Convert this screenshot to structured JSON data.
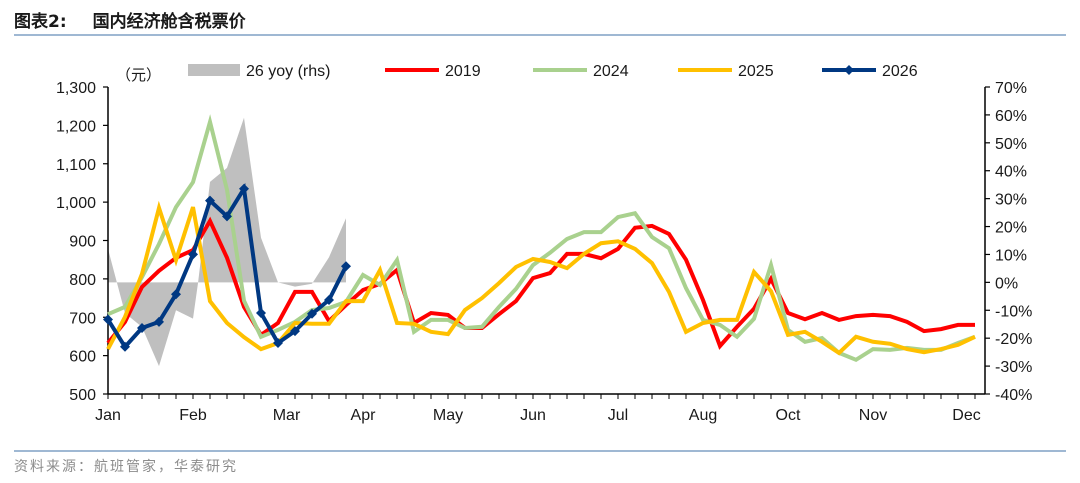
{
  "header": {
    "figure_label": "图表2:",
    "title": "国内经济舱含税票价"
  },
  "footer": {
    "source": "资料来源：航班管家，华泰研究"
  },
  "chart_data": {
    "type": "line",
    "title": "国内经济舱含税票价",
    "ylabel": "（元）",
    "y2label": "26 yoy (rhs)",
    "ylim": [
      500,
      1300
    ],
    "y2lim": [
      -40,
      70
    ],
    "yticks": [
      "500",
      "600",
      "700",
      "800",
      "900",
      "1,000",
      "1,100",
      "1,200",
      "1,300"
    ],
    "y2ticks": [
      "-40%",
      "-30%",
      "-20%",
      "-10%",
      "0%",
      "10%",
      "20%",
      "30%",
      "40%",
      "50%",
      "60%",
      "70%"
    ],
    "x_unit": "week of year (0-51)",
    "xticks": [
      {
        "label": "Jan",
        "week": 0
      },
      {
        "label": "Feb",
        "week": 5
      },
      {
        "label": "Mar",
        "week": 10.5
      },
      {
        "label": "Apr",
        "week": 15
      },
      {
        "label": "May",
        "week": 20
      },
      {
        "label": "Jun",
        "week": 25
      },
      {
        "label": "Jul",
        "week": 30
      },
      {
        "label": "Aug",
        "week": 35
      },
      {
        "label": "Oct",
        "week": 40
      },
      {
        "label": "Nov",
        "week": 45
      },
      {
        "label": "Dec",
        "week": 50.5
      }
    ],
    "legend_position": "top",
    "legend": [
      "26 yoy (rhs)",
      "2019",
      "2024",
      "2025",
      "2026"
    ],
    "area": {
      "name": "26 yoy (rhs)",
      "color": "#bfbfbf",
      "axis": "right",
      "points": [
        [
          0,
          12
        ],
        [
          1,
          -11
        ],
        [
          2,
          -16
        ],
        [
          3,
          -30
        ],
        [
          4,
          -10
        ],
        [
          5,
          -13
        ],
        [
          5.3,
          0
        ],
        [
          6,
          36
        ],
        [
          7,
          41
        ],
        [
          8,
          59
        ],
        [
          9,
          16
        ],
        [
          10,
          0
        ],
        [
          11,
          -1.5
        ],
        [
          12,
          -0.5
        ],
        [
          13,
          9
        ],
        [
          14,
          23
        ]
      ]
    },
    "series": [
      {
        "name": "2019",
        "color": "#ff0000",
        "marker": false,
        "values": [
          633,
          688,
          779,
          821,
          855,
          875,
          951,
          855,
          727,
          654,
          685,
          766,
          766,
          690,
          732,
          771,
          787,
          823,
          685,
          711,
          706,
          672,
          672,
          708,
          742,
          802,
          815,
          865,
          865,
          854,
          878,
          933,
          938,
          917,
          850,
          745,
          625,
          675,
          722,
          800,
          711,
          695,
          711,
          693,
          703,
          706,
          703,
          688,
          664,
          669,
          680,
          680
        ]
      },
      {
        "name": "2024",
        "color": "#a9d18e",
        "marker": false,
        "values": [
          708,
          727,
          805,
          891,
          987,
          1052,
          1209,
          1032,
          743,
          649,
          667,
          688,
          719,
          724,
          740,
          810,
          784,
          849,
          662,
          693,
          693,
          672,
          675,
          727,
          774,
          836,
          868,
          904,
          922,
          922,
          961,
          971,
          909,
          880,
          776,
          693,
          680,
          649,
          696,
          836,
          667,
          636,
          646,
          607,
          589,
          617,
          615,
          620,
          615,
          615,
          633,
          649
        ]
      },
      {
        "name": "2025",
        "color": "#ffc000",
        "marker": false,
        "values": [
          617,
          701,
          813,
          985,
          849,
          987,
          742,
          685,
          648,
          617,
          633,
          685,
          683,
          683,
          742,
          742,
          823,
          685,
          683,
          662,
          656,
          719,
          750,
          789,
          831,
          852,
          844,
          828,
          865,
          893,
          898,
          878,
          841,
          766,
          662,
          685,
          693,
          693,
          818,
          768,
          654,
          662,
          636,
          607,
          649,
          636,
          631,
          617,
          609,
          617,
          628,
          649
        ]
      },
      {
        "name": "2026",
        "color": "#003882",
        "marker": true,
        "values": [
          694,
          623,
          672,
          688,
          760,
          864,
          1004,
          963,
          1035,
          711,
          633,
          664,
          709,
          745,
          833
        ]
      }
    ]
  }
}
